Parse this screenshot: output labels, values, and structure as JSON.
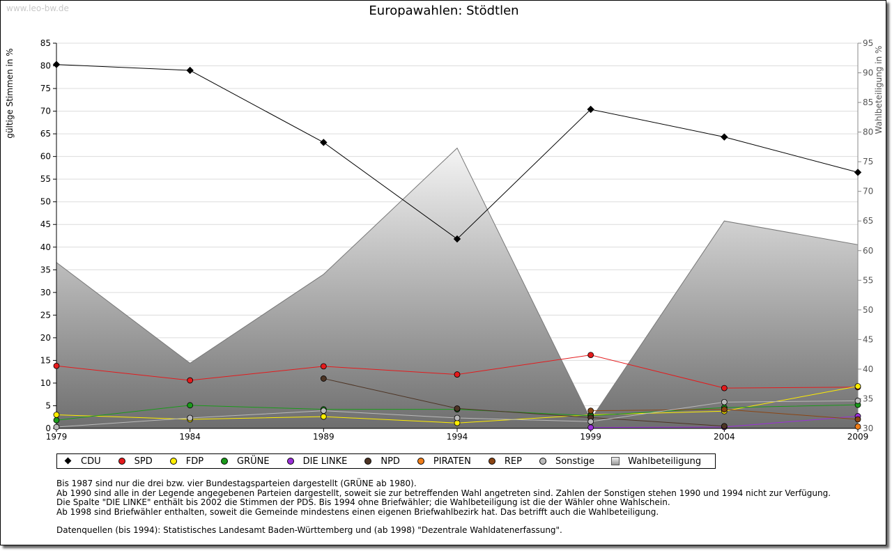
{
  "watermark": "www.leo-bw.de",
  "chart_data": {
    "type": "line",
    "title": "Europawahlen: Stödtlen",
    "ylabel": "gültige Stimmen in %",
    "y2label": "Wahlbeteiligung in %",
    "x": [
      "1979",
      "1984",
      "1989",
      "1994",
      "1999",
      "2004",
      "2009"
    ],
    "ylim": [
      0,
      85
    ],
    "yticks": [
      0,
      5,
      10,
      15,
      20,
      25,
      30,
      35,
      40,
      45,
      50,
      55,
      60,
      65,
      70,
      75,
      80,
      85
    ],
    "y2lim": [
      30,
      95
    ],
    "y2ticks": [
      30,
      35,
      40,
      45,
      50,
      55,
      60,
      65,
      70,
      75,
      80,
      85,
      90,
      95
    ],
    "grid": true,
    "legend_position": "bottom",
    "series": [
      {
        "name": "CDU",
        "color": "#000000",
        "marker": "diamond",
        "values": [
          80.3,
          79.0,
          63.1,
          41.8,
          70.4,
          64.3,
          56.5
        ]
      },
      {
        "name": "SPD",
        "color": "#e41a1c",
        "marker": "circle",
        "values": [
          13.8,
          10.6,
          13.7,
          11.9,
          16.2,
          8.9,
          9.1
        ]
      },
      {
        "name": "FDP",
        "color": "#ffee00",
        "marker": "circle",
        "values": [
          3.0,
          2.0,
          2.6,
          1.2,
          3.0,
          3.8,
          9.3
        ]
      },
      {
        "name": "GRÜNE",
        "color": "#1a9a1a",
        "marker": "circle",
        "values": [
          1.8,
          5.1,
          4.2,
          4.2,
          2.8,
          4.6,
          5.2
        ]
      },
      {
        "name": "DIE LINKE",
        "color": "#9b30d9",
        "marker": "circle",
        "values": [
          null,
          null,
          null,
          null,
          0.2,
          0.3,
          2.7
        ]
      },
      {
        "name": "NPD",
        "color": "#4d3424",
        "marker": "circle",
        "values": [
          null,
          null,
          11.0,
          4.4,
          2.4,
          0.5,
          null
        ]
      },
      {
        "name": "PIRATEN",
        "color": "#f07e1a",
        "marker": "circle",
        "values": [
          null,
          null,
          null,
          null,
          null,
          null,
          0.4
        ]
      },
      {
        "name": "REP",
        "color": "#8b4513",
        "marker": "circle",
        "values": [
          null,
          null,
          null,
          null,
          3.9,
          4.2,
          2.0
        ]
      },
      {
        "name": "Sonstige",
        "color": "#bbbbbb",
        "marker": "circle",
        "values": [
          0.3,
          2.3,
          3.9,
          2.3,
          1.5,
          5.8,
          6.1
        ]
      }
    ],
    "area_series": {
      "name": "Wahlbeteiligung",
      "axis": "right",
      "values": [
        58.0,
        41.0,
        56.0,
        77.3,
        31.5,
        65.0,
        61.0
      ]
    }
  },
  "legend": [
    "CDU",
    "SPD",
    "FDP",
    "GRÜNE",
    "DIE LINKE",
    "NPD",
    "PIRATEN",
    "REP",
    "Sonstige",
    "Wahlbeteiligung"
  ],
  "notes": [
    "Bis 1987 sind nur die drei bzw. vier Bundestagsparteien dargestellt (GRÜNE ab 1980).",
    "Ab 1990 sind alle in der Legende angegebenen Parteien dargestellt, soweit sie zur betreffenden Wahl angetreten sind. Zahlen der Sonstigen stehen 1990 und 1994 nicht zur Verfügung.",
    "Die Spalte \"DIE LINKE\" enthält bis 2002 die Stimmen der PDS. Bis 1994 ohne Briefwähler; die Wahlbeteiligung ist die der Wähler ohne Wahlschein.",
    "Ab 1998 sind Briefwähler enthalten, soweit die Gemeinde mindestens einen eigenen Briefwahlbezirk hat. Das betrifft auch die Wahlbeteiligung."
  ],
  "source": "Datenquellen (bis 1994): Statistisches Landesamt Baden-Württemberg und (ab 1998) \"Dezentrale Wahldatenerfassung\"."
}
